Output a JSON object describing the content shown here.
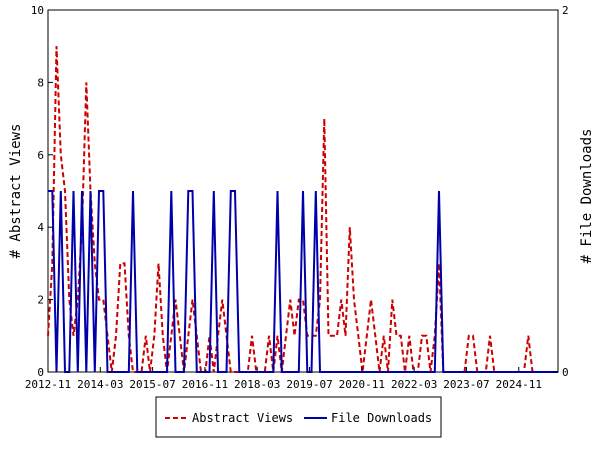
{
  "chart_data": {
    "type": "line",
    "x_tick_labels": [
      "2012-11",
      "2014-03",
      "2015-07",
      "2016-11",
      "2018-03",
      "2019-07",
      "2020-11",
      "2022-03",
      "2023-07",
      "2024-11"
    ],
    "y_left": {
      "label": "# Abstract Views",
      "ylim": [
        0,
        10
      ],
      "ticks": [
        0,
        2,
        4,
        6,
        8,
        10
      ]
    },
    "y_right": {
      "label": "# File Downloads",
      "ylim": [
        0,
        2
      ],
      "ticks": [
        0,
        2
      ]
    },
    "grid": false,
    "legend_position": "bottom",
    "series": [
      {
        "name": "Abstract Views",
        "axis": "left",
        "color": "#cc0000",
        "dash": "dashed",
        "values": [
          1,
          3,
          9,
          6,
          5,
          2,
          1,
          2,
          4,
          8,
          5,
          3,
          2,
          2,
          1,
          0,
          1,
          3,
          3,
          1,
          0,
          0,
          0,
          1,
          0,
          1,
          3,
          1,
          0,
          1,
          2,
          1,
          0,
          1,
          2,
          1,
          0,
          0,
          1,
          0,
          1,
          2,
          1,
          0,
          0,
          0,
          0,
          0,
          1,
          0,
          0,
          0,
          1,
          0,
          1,
          0,
          1,
          2,
          1,
          2,
          2,
          1,
          1,
          1,
          2,
          7,
          1,
          1,
          1,
          2,
          1,
          4,
          2,
          1,
          0,
          1,
          2,
          1,
          0,
          1,
          0,
          2,
          1,
          1,
          0,
          1,
          0,
          0,
          1,
          1,
          0,
          1,
          3,
          0,
          0,
          0,
          0,
          0,
          0,
          1,
          1,
          0,
          0,
          0,
          1,
          0,
          0,
          0,
          0,
          0,
          0,
          0,
          0,
          1,
          0,
          0,
          0,
          0,
          0,
          0,
          0
        ]
      },
      {
        "name": "File Downloads",
        "axis": "right",
        "color": "#0000aa",
        "dash": "solid",
        "values": [
          1,
          1,
          0,
          1,
          0,
          0,
          1,
          0,
          1,
          0,
          1,
          0,
          1,
          1,
          0,
          0,
          0,
          0,
          0,
          0,
          1,
          0,
          0,
          0,
          0,
          0,
          0,
          0,
          0,
          1,
          0,
          0,
          0,
          1,
          1,
          0,
          0,
          0,
          0,
          1,
          0,
          0,
          0,
          1,
          1,
          0,
          0,
          0,
          0,
          0,
          0,
          0,
          0,
          0,
          1,
          0,
          0,
          0,
          0,
          0,
          1,
          0,
          0,
          1,
          0,
          0,
          0,
          0,
          0,
          0,
          0,
          0,
          0,
          0,
          0,
          0,
          0,
          0,
          0,
          0,
          0,
          0,
          0,
          0,
          0,
          0,
          0,
          0,
          0,
          0,
          0,
          0,
          1,
          0,
          0,
          0,
          0,
          0,
          0,
          0,
          0,
          0,
          0,
          0,
          0,
          0,
          0,
          0,
          0,
          0,
          0,
          0,
          0,
          0,
          0,
          0,
          0,
          0,
          0,
          0,
          0
        ]
      }
    ]
  }
}
